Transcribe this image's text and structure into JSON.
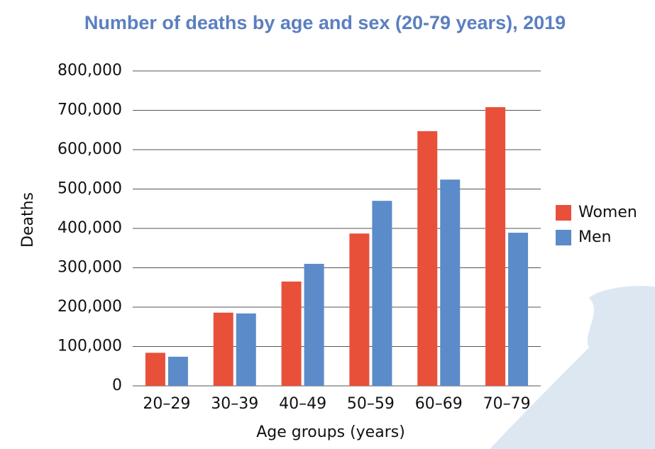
{
  "chart_data": {
    "type": "bar",
    "title": "Number of deaths by age and sex (20-79 years), 2019",
    "x_label": "Age groups (years)",
    "y_label": "Deaths",
    "categories": [
      "20–29",
      "30–39",
      "40–49",
      "50–59",
      "60–69",
      "70–79"
    ],
    "series": [
      {
        "name": "Women",
        "color": "#e8503a",
        "values": [
          84000,
          186000,
          265000,
          387000,
          647000,
          708000
        ]
      },
      {
        "name": "Men",
        "color": "#5b8bc9",
        "values": [
          74000,
          184000,
          310000,
          470000,
          524000,
          389000
        ]
      }
    ],
    "ylim": [
      0,
      800000
    ],
    "yticks": [
      0,
      {
        "value": 100000,
        "label": "100,000"
      },
      {
        "value": 200000,
        "label": "200,000"
      },
      {
        "value": 300000,
        "label": "300,000"
      },
      {
        "value": 400000,
        "label": "400,000"
      },
      {
        "value": 500000,
        "label": "500,000"
      },
      {
        "value": 600000,
        "label": "600,000"
      },
      {
        "value": 700000,
        "label": "700,000"
      },
      {
        "value": 800000,
        "label": "800,000"
      }
    ],
    "grid": true,
    "legend": "right"
  }
}
